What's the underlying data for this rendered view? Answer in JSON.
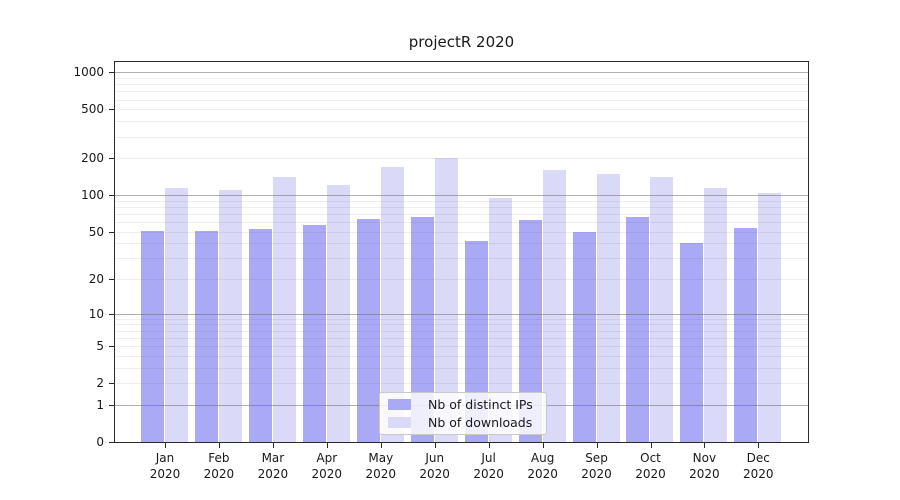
{
  "chart_data": {
    "type": "bar",
    "title": "projectR 2020",
    "categories": [
      "Jan 2020",
      "Feb 2020",
      "Mar 2020",
      "Apr 2020",
      "May 2020",
      "Jun 2020",
      "Jul 2020",
      "Aug 2020",
      "Sep 2020",
      "Oct 2020",
      "Nov 2020",
      "Dec 2020"
    ],
    "series": [
      {
        "name": "Nb of distinct IPs",
        "color": "#a9a9f5",
        "values": [
          51,
          51,
          53,
          57,
          64,
          66,
          42,
          63,
          50,
          66,
          40,
          54
        ]
      },
      {
        "name": "Nb of downloads",
        "color": "#dadaf8",
        "values": [
          115,
          110,
          140,
          120,
          170,
          200,
          95,
          160,
          150,
          142,
          115,
          105
        ]
      }
    ],
    "xlabel": "",
    "ylabel": "",
    "y_scale": "log1p",
    "y_ticks": [
      0,
      1,
      2,
      5,
      10,
      20,
      50,
      100,
      200,
      500,
      1000
    ],
    "y_major_gridlines": [
      1,
      10,
      100,
      1000
    ],
    "ylim": [
      0,
      1200
    ],
    "grid": "on",
    "legend_position": "lower center"
  },
  "colors": {
    "axis": "#2b2b2b",
    "grid_major": "rgba(110,110,110,0.55)",
    "grid_minor": "rgba(90,90,90,0.10)",
    "background": "#ffffff",
    "text": "#1a1a1a"
  }
}
